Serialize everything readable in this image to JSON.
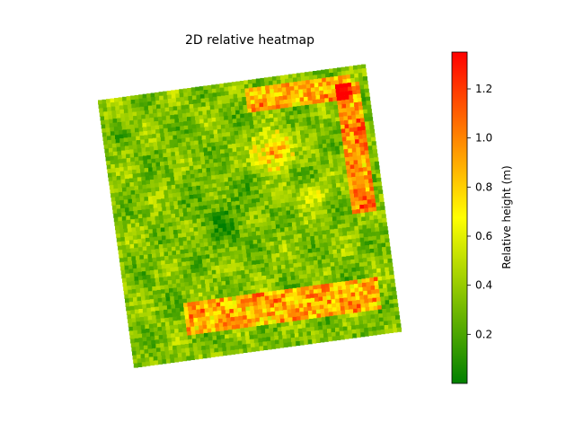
{
  "chart_data": {
    "type": "heatmap",
    "title": "2D relative heatmap",
    "colorbar": {
      "label": "Relative height (m)",
      "range": [
        0.0,
        1.35
      ],
      "ticks": [
        0.2,
        0.4,
        0.6,
        0.8,
        1.0,
        1.2
      ],
      "tick_labels": [
        "0.2",
        "0.4",
        "0.6",
        "0.8",
        "1.0",
        "1.2"
      ],
      "colormap": [
        "#008000",
        "#ffff00",
        "#ff0000"
      ]
    },
    "axes_visible": false,
    "grid": false,
    "value_summary": {
      "min": 0.0,
      "max": 1.35,
      "typical": 0.35,
      "high_regions": [
        "top-right ring edge",
        "upper-center cluster",
        "lower band"
      ]
    }
  }
}
